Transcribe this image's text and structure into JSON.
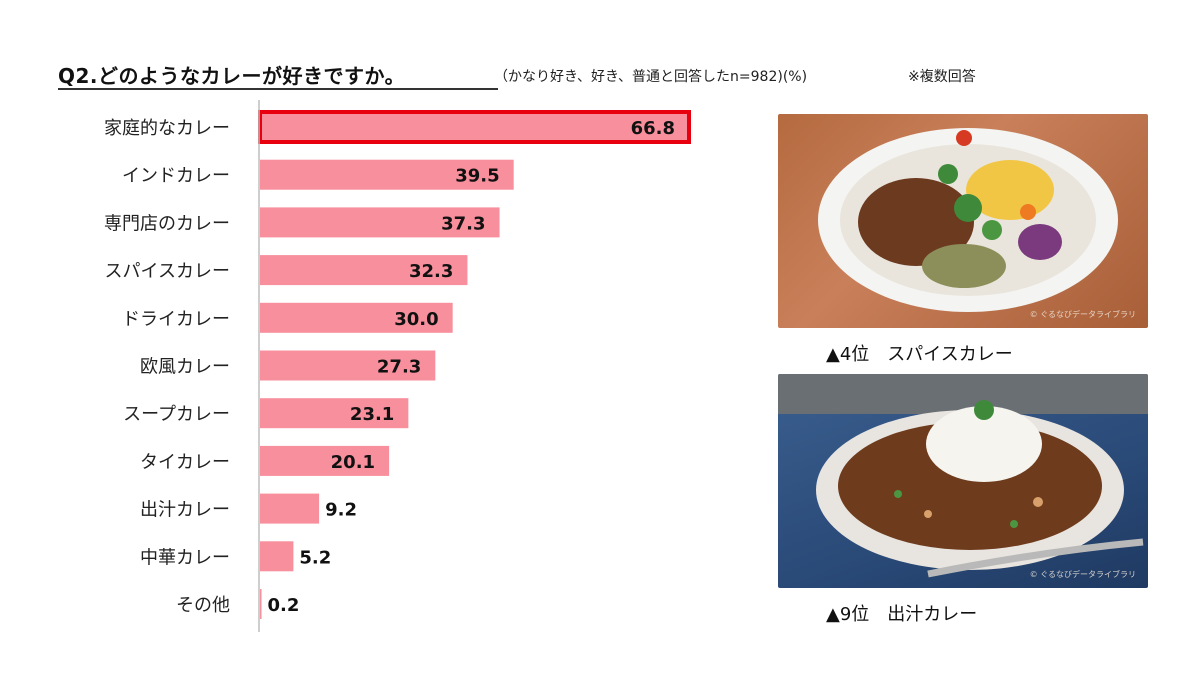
{
  "header": {
    "title": "Q2.どのようなカレーが好きですか。",
    "note": "（かなり好き、好き、普通と回答したn=982)(%)",
    "note2": "※複数回答"
  },
  "chart_data": {
    "type": "bar",
    "orientation": "horizontal",
    "categories": [
      "家庭的なカレー",
      "インドカレー",
      "専門店のカレー",
      "スパイスカレー",
      "ドライカレー",
      "欧風カレー",
      "スープカレー",
      "タイカレー",
      "出汁カレー",
      "中華カレー",
      "その他"
    ],
    "values": [
      66.8,
      39.5,
      37.3,
      32.3,
      30.0,
      27.3,
      23.1,
      20.1,
      9.2,
      5.2,
      0.2
    ],
    "value_labels": [
      "66.8",
      "39.5",
      "37.3",
      "32.3",
      "30.0",
      "27.3",
      "23.1",
      "20.1",
      "9.2",
      "5.2",
      "0.2"
    ],
    "highlighted_index": 0,
    "bar_color": "#f78f9c",
    "highlight_border_color": "#e8000e",
    "axis_color": "#bdbdbd"
  },
  "photos": [
    {
      "name": "spice-curry-photo",
      "caption": "▲4位　スパイスカレー",
      "credit": "© ぐるなびデータライブラリ"
    },
    {
      "name": "dashi-curry-photo",
      "caption": "▲9位　出汁カレー",
      "credit": "© ぐるなびデータライブラリ"
    }
  ]
}
